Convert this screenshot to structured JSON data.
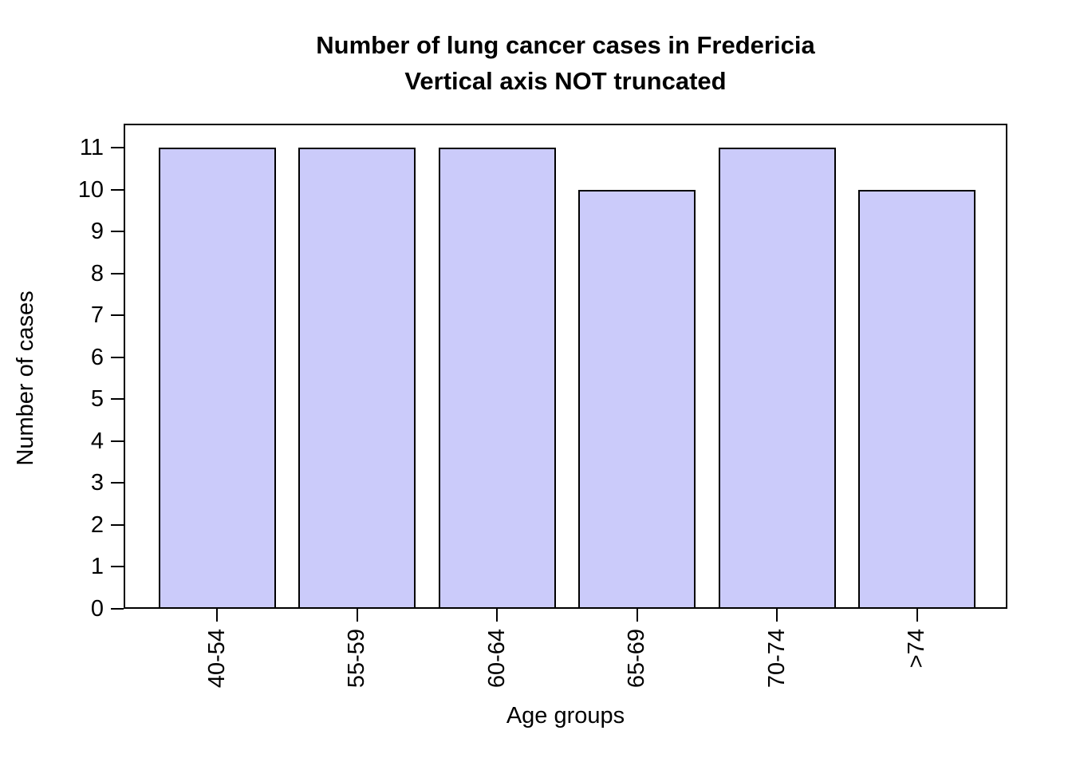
{
  "chart_data": {
    "type": "bar",
    "title": "Number of lung cancer cases in Fredericia",
    "subtitle": "Vertical axis NOT truncated",
    "xlabel": "Age groups",
    "ylabel": "Number of cases",
    "categories": [
      "40-54",
      "55-59",
      "60-64",
      "65-69",
      "70-74",
      ">74"
    ],
    "values": [
      11,
      11,
      11,
      10,
      11,
      10
    ],
    "ylim": [
      0,
      11
    ],
    "yticks": [
      0,
      1,
      2,
      3,
      4,
      5,
      6,
      7,
      8,
      9,
      10,
      11
    ],
    "grid": false,
    "legend": "none",
    "bar_fill_color": "#cbcbfa",
    "bar_border_color": "#000000",
    "axis_color": "#000000",
    "background_color": "#ffffff"
  }
}
